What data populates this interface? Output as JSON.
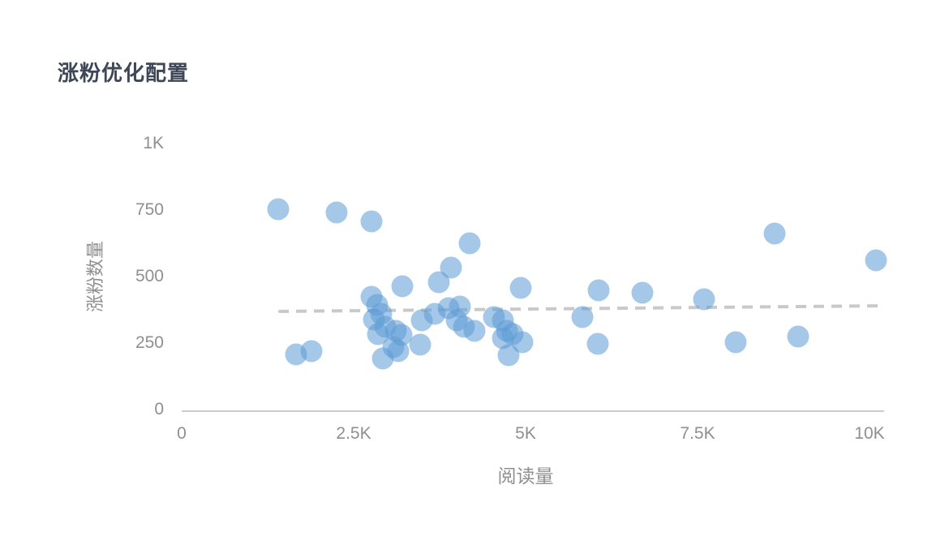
{
  "chart_data": {
    "type": "scatter",
    "title": "涨粉优化配置",
    "xlabel": "阅读量",
    "ylabel": "涨粉数量",
    "xlim": [
      0,
      10000
    ],
    "ylim": [
      0,
      1000
    ],
    "x_ticks": [
      {
        "value": 0,
        "label": "0"
      },
      {
        "value": 2500,
        "label": "2.5K"
      },
      {
        "value": 5000,
        "label": "5K"
      },
      {
        "value": 7500,
        "label": "7.5K"
      },
      {
        "value": 10000,
        "label": "10K"
      }
    ],
    "y_ticks": [
      {
        "value": 0,
        "label": "0"
      },
      {
        "value": 250,
        "label": "250"
      },
      {
        "value": 500,
        "label": "500"
      },
      {
        "value": 750,
        "label": "750"
      },
      {
        "value": 1000,
        "label": "1K"
      }
    ],
    "grid": false,
    "legend": "none",
    "marker_color": "#5b9bd5",
    "marker_opacity": 0.55,
    "trend_line": {
      "style": "dashed",
      "color": "#c9c9c9",
      "x1": 1400,
      "y1": 369,
      "x2": 10150,
      "y2": 390
    },
    "points": [
      [
        1400,
        753
      ],
      [
        1660,
        207
      ],
      [
        1890,
        219
      ],
      [
        2250,
        740
      ],
      [
        2760,
        708
      ],
      [
        2760,
        424
      ],
      [
        2840,
        394
      ],
      [
        2900,
        360
      ],
      [
        2790,
        338
      ],
      [
        2960,
        311
      ],
      [
        2850,
        284
      ],
      [
        2930,
        192
      ],
      [
        3075,
        235
      ],
      [
        3110,
        296
      ],
      [
        3150,
        220
      ],
      [
        3200,
        280
      ],
      [
        3210,
        463
      ],
      [
        3470,
        245
      ],
      [
        3490,
        335
      ],
      [
        3680,
        360
      ],
      [
        3740,
        479
      ],
      [
        3880,
        381
      ],
      [
        3920,
        534
      ],
      [
        4000,
        335
      ],
      [
        4040,
        387
      ],
      [
        4100,
        311
      ],
      [
        4190,
        625
      ],
      [
        4260,
        296
      ],
      [
        4540,
        348
      ],
      [
        4670,
        335
      ],
      [
        4670,
        268
      ],
      [
        4730,
        296
      ],
      [
        4810,
        284
      ],
      [
        4750,
        204
      ],
      [
        4950,
        253
      ],
      [
        4930,
        457
      ],
      [
        5830,
        348
      ],
      [
        6060,
        448
      ],
      [
        6050,
        247
      ],
      [
        6700,
        439
      ],
      [
        7600,
        415
      ],
      [
        8060,
        253
      ],
      [
        8620,
        662
      ],
      [
        8960,
        274
      ],
      [
        10100,
        560
      ]
    ],
    "colors": {
      "title": "#3d4757",
      "tick_label": "#8f8f8f",
      "axis_title": "#8f8f8f",
      "axis_line": "#cbcbcb"
    }
  }
}
